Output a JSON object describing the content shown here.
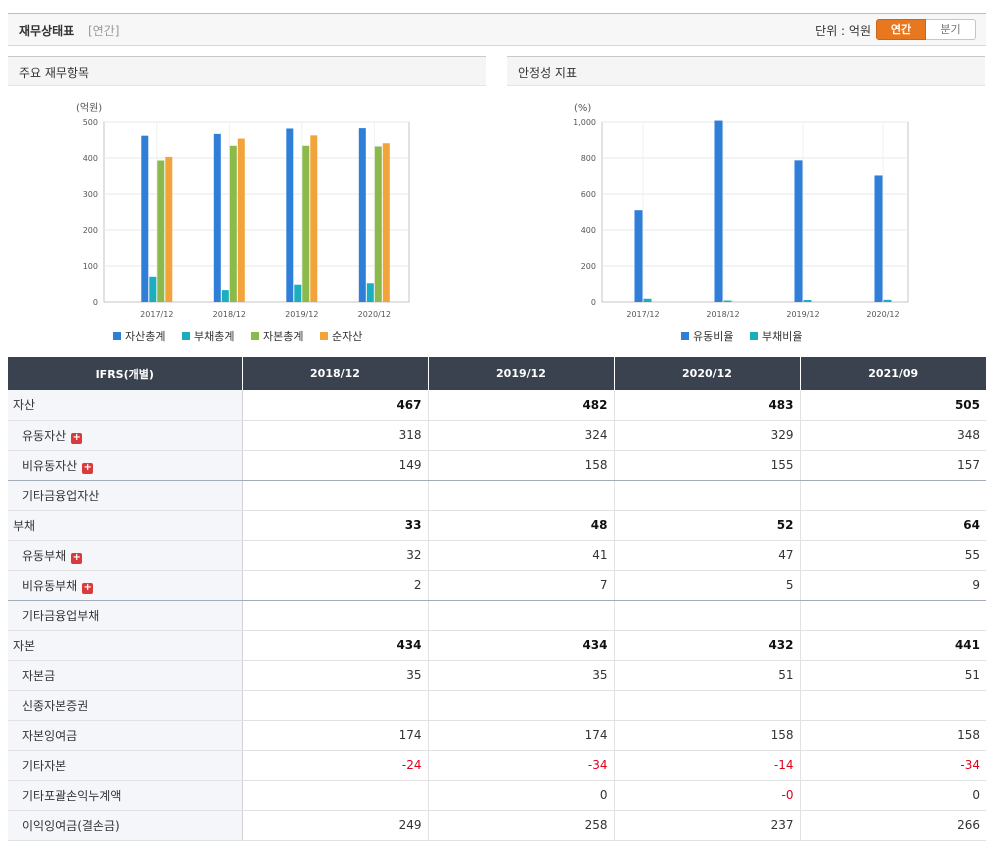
{
  "header": {
    "title": "재무상태표",
    "subtitle": "[연간]",
    "unit_label": "단위 : 억원",
    "toggle": [
      "연간",
      "분기"
    ]
  },
  "panels": {
    "left_title": "주요 재무항목",
    "right_title": "안정성 지표"
  },
  "colors": {
    "accent": "#e8781f",
    "header_bg": "#3a4250",
    "negative": "#e0001a",
    "series": [
      "#2f7ed8",
      "#1aaebf",
      "#8bb94a",
      "#f2a43a"
    ]
  },
  "chart_data": [
    {
      "type": "bar",
      "unit_label": "(억원)",
      "categories": [
        "2017/12",
        "2018/12",
        "2019/12",
        "2020/12"
      ],
      "ylim": [
        0,
        500
      ],
      "yticks": [
        0,
        100,
        200,
        300,
        400,
        500
      ],
      "grid": true,
      "legend": "bottom",
      "series": [
        {
          "name": "자산총계",
          "values": [
            462,
            467,
            482,
            483
          ]
        },
        {
          "name": "부채총계",
          "values": [
            70,
            33,
            48,
            52
          ]
        },
        {
          "name": "자본총계",
          "values": [
            393,
            434,
            434,
            432
          ]
        },
        {
          "name": "순자산",
          "values": [
            403,
            454,
            463,
            441
          ]
        }
      ]
    },
    {
      "type": "bar",
      "unit_label": "(%)",
      "categories": [
        "2017/12",
        "2018/12",
        "2019/12",
        "2020/12"
      ],
      "ylim": [
        0,
        1000
      ],
      "yticks": [
        0,
        200,
        400,
        600,
        800,
        1000
      ],
      "ytick_labels": [
        "0",
        "200",
        "400",
        "600",
        "800",
        "1,000"
      ],
      "grid": true,
      "legend": "bottom",
      "series": [
        {
          "name": "유동비율",
          "values": [
            510,
            1008,
            787,
            703
          ]
        },
        {
          "name": "부채비율",
          "values": [
            18,
            8,
            11,
            12
          ]
        }
      ]
    }
  ],
  "table": {
    "columns": [
      "IFRS(개별)",
      "2018/12",
      "2019/12",
      "2020/12",
      "2021/09"
    ],
    "rows": [
      {
        "label": "자산",
        "major": true,
        "values": [
          "467",
          "482",
          "483",
          "505"
        ]
      },
      {
        "label": "유동자산",
        "expand": true,
        "values": [
          "318",
          "324",
          "329",
          "348"
        ]
      },
      {
        "label": "비유동자산",
        "expand": true,
        "values": [
          "149",
          "158",
          "155",
          "157"
        ]
      },
      {
        "label": "기타금융업자산",
        "values": [
          "",
          "",
          "",
          ""
        ]
      },
      {
        "label": "부채",
        "major": true,
        "values": [
          "33",
          "48",
          "52",
          "64"
        ]
      },
      {
        "label": "유동부채",
        "expand": true,
        "values": [
          "32",
          "41",
          "47",
          "55"
        ]
      },
      {
        "label": "비유동부채",
        "expand": true,
        "values": [
          "2",
          "7",
          "5",
          "9"
        ]
      },
      {
        "label": "기타금융업부채",
        "values": [
          "",
          "",
          "",
          ""
        ]
      },
      {
        "label": "자본",
        "major": true,
        "values": [
          "434",
          "434",
          "432",
          "441"
        ]
      },
      {
        "label": "자본금",
        "values": [
          "35",
          "35",
          "51",
          "51"
        ]
      },
      {
        "label": "신종자본증권",
        "values": [
          "",
          "",
          "",
          ""
        ]
      },
      {
        "label": "자본잉여금",
        "values": [
          "174",
          "174",
          "158",
          "158"
        ]
      },
      {
        "label": "기타자본",
        "values": [
          "-24",
          "-34",
          "-14",
          "-34"
        ]
      },
      {
        "label": "기타포괄손익누계액",
        "values": [
          "",
          "0",
          "-0",
          "0"
        ]
      },
      {
        "label": "이익잉여금(결손금)",
        "values": [
          "249",
          "258",
          "237",
          "266"
        ]
      }
    ]
  }
}
